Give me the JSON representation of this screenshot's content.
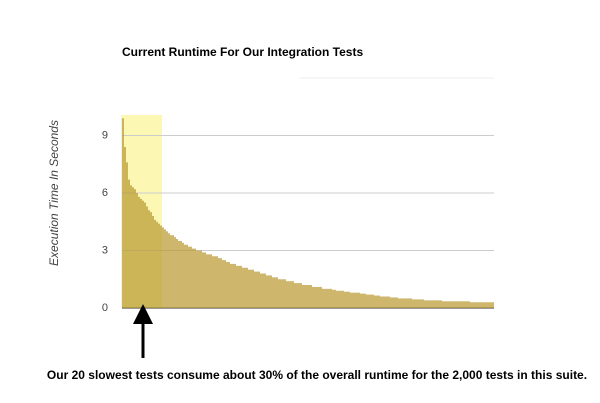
{
  "chart_data": {
    "type": "bar",
    "title": "Current Runtime For Our Integration Tests",
    "y_label": "Execution Time In Seconds",
    "annotation": "Our 20 slowest tests consume about 30% of the overall runtime for the 2,000 tests in this suite.",
    "color": "#b8982e",
    "ylim": [
      0,
      12
    ],
    "yticks": [
      0,
      3,
      6,
      9
    ],
    "grid": true,
    "values": [
      9.9,
      8.4,
      7.6,
      6.7,
      6.4,
      6.3,
      6.2,
      6.0,
      5.8,
      5.7,
      5.6,
      5.5,
      5.3,
      5.1,
      5.0,
      4.8,
      4.6,
      4.5,
      4.4,
      4.3,
      4.2,
      4.1,
      4.0,
      3.9,
      3.8,
      3.8,
      3.7,
      3.6,
      3.5,
      3.5,
      3.4,
      3.3,
      3.3,
      3.2,
      3.2,
      3.1,
      3.1,
      3.0,
      3.0,
      3.0,
      2.9,
      2.9,
      2.8,
      2.8,
      2.8,
      2.7,
      2.7,
      2.7,
      2.6,
      2.6,
      2.5,
      2.5,
      2.4,
      2.4,
      2.3,
      2.3,
      2.3,
      2.2,
      2.2,
      2.2,
      2.1,
      2.1,
      2.1,
      2.0,
      2.0,
      2.0,
      1.9,
      1.9,
      1.9,
      1.8,
      1.8,
      1.8,
      1.7,
      1.7,
      1.7,
      1.6,
      1.6,
      1.6,
      1.5,
      1.5,
      1.5,
      1.5,
      1.4,
      1.4,
      1.4,
      1.4,
      1.3,
      1.3,
      1.3,
      1.3,
      1.2,
      1.2,
      1.2,
      1.2,
      1.2,
      1.1,
      1.1,
      1.1,
      1.1,
      1.1,
      1.0,
      1.0,
      1.0,
      1.0,
      1.0,
      0.95,
      0.95,
      0.9,
      0.9,
      0.9,
      0.9,
      0.85,
      0.85,
      0.85,
      0.8,
      0.8,
      0.8,
      0.8,
      0.8,
      0.75,
      0.75,
      0.75,
      0.7,
      0.7,
      0.7,
      0.7,
      0.65,
      0.65,
      0.65,
      0.6,
      0.6,
      0.6,
      0.6,
      0.6,
      0.55,
      0.55,
      0.55,
      0.55,
      0.5,
      0.5,
      0.5,
      0.5,
      0.5,
      0.5,
      0.5,
      0.45,
      0.45,
      0.45,
      0.45,
      0.45,
      0.45,
      0.4,
      0.4,
      0.4,
      0.4,
      0.4,
      0.4,
      0.4,
      0.4,
      0.4,
      0.35,
      0.35,
      0.35,
      0.35,
      0.35,
      0.35,
      0.35,
      0.35,
      0.35,
      0.35,
      0.35,
      0.35,
      0.35,
      0.35,
      0.3,
      0.3,
      0.3,
      0.3,
      0.3,
      0.3,
      0.3,
      0.3,
      0.3,
      0.3,
      0.3,
      0.3
    ]
  }
}
